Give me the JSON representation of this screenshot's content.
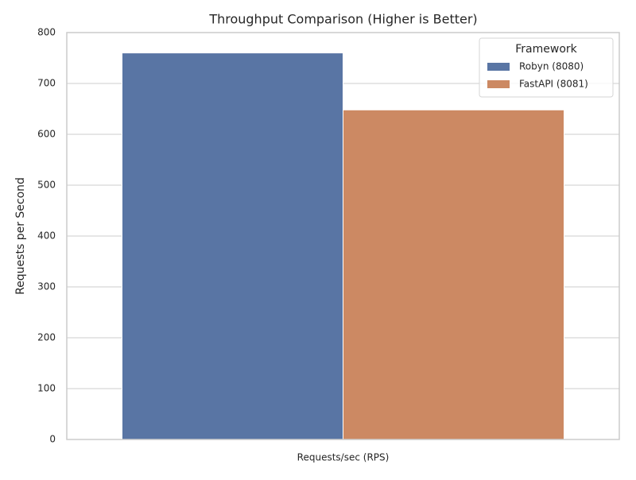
{
  "chart_data": {
    "type": "bar",
    "title": "Throughput Comparison (Higher is Better)",
    "categories": [
      "Requests/sec (RPS)"
    ],
    "series": [
      {
        "name": "Robyn (8080)",
        "color": "#5975a4",
        "values": [
          760
        ]
      },
      {
        "name": "FastAPI (8081)",
        "color": "#cc8963",
        "values": [
          648
        ]
      }
    ],
    "y_label": "Requests per Second",
    "legend_title": "Framework",
    "legend": "upper right",
    "ylim": [
      0,
      800
    ],
    "yticks": [
      0,
      100,
      200,
      300,
      400,
      500,
      600,
      700,
      800
    ],
    "grid": true
  }
}
